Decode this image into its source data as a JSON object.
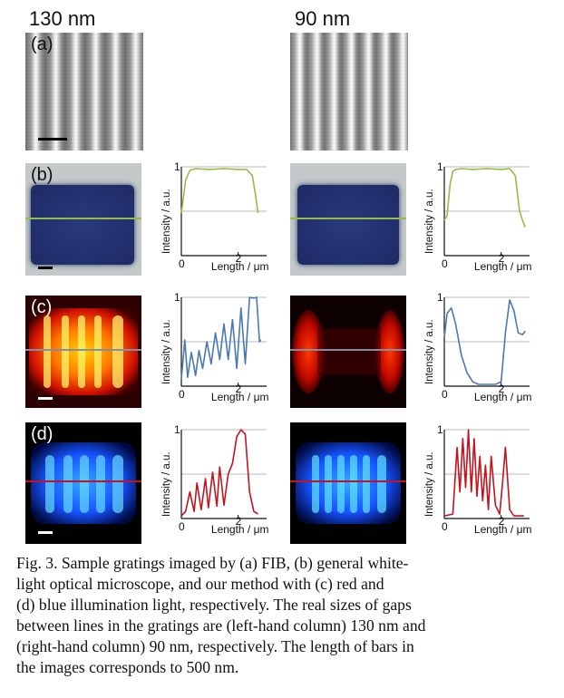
{
  "columns": {
    "left": "130 nm",
    "right": "90 nm"
  },
  "panel_labels": {
    "a": "(a)",
    "b": "(b)",
    "c": "(c)",
    "d": "(d)"
  },
  "axes": {
    "ylabel": "Intensity / a.u.",
    "xlabel": "Length / μm",
    "y_top": "1",
    "x_zero": "0",
    "x_mid": "2"
  },
  "colors": {
    "green": "#96bb46",
    "blue_line": "#4a78b4",
    "red_line": "#c0141e",
    "red_marker": "#c0141e",
    "gray_marker": "#7f8fa8"
  },
  "caption": {
    "lines": [
      "Fig. 3.   Sample gratings imaged by (a) FIB, (b) general white-",
      "light optical microscope, and our method with (c) red and",
      "(d) blue illumination light, respectively. The real sizes of gaps",
      "between lines in the gratings are (left-hand column) 130 nm and",
      "(right-hand column) 90 nm, respectively. The length of bars in",
      "the images corresponds to 500 nm."
    ]
  },
  "chart_data": [
    {
      "type": "line",
      "panel": "b-left",
      "title": "",
      "xlabel": "Length / μm",
      "ylabel": "Intensity / a.u.",
      "xlim": [
        0,
        3
      ],
      "ylim": [
        0,
        1
      ],
      "x": [
        0,
        0.05,
        0.15,
        0.3,
        0.5,
        1,
        1.5,
        2,
        2.3,
        2.5,
        2.6,
        2.7
      ],
      "series": [
        {
          "name": "green",
          "values": [
            0.48,
            0.6,
            0.85,
            0.96,
            0.98,
            0.97,
            0.98,
            0.97,
            0.97,
            0.9,
            0.7,
            0.48
          ]
        }
      ]
    },
    {
      "type": "line",
      "panel": "c-left",
      "title": "",
      "xlabel": "Length / μm",
      "ylabel": "Intensity / a.u.",
      "xlim": [
        0,
        3
      ],
      "ylim": [
        0,
        1
      ],
      "x": [
        0,
        0.12,
        0.22,
        0.35,
        0.5,
        0.62,
        0.75,
        0.9,
        1.05,
        1.2,
        1.35,
        1.5,
        1.65,
        1.8,
        1.95,
        2.1,
        2.25,
        2.4,
        2.55,
        2.65,
        2.75,
        2.8
      ],
      "series": [
        {
          "name": "blue",
          "values": [
            0.08,
            0.52,
            0.1,
            0.38,
            0.12,
            0.4,
            0.2,
            0.5,
            0.25,
            0.6,
            0.3,
            0.7,
            0.3,
            0.75,
            0.2,
            0.88,
            0.25,
            1.0,
            0.99,
            1.0,
            0.5,
            0.52
          ]
        }
      ]
    },
    {
      "type": "line",
      "panel": "d-left",
      "title": "",
      "xlabel": "Length / μm",
      "ylabel": "Intensity / a.u.",
      "xlim": [
        0,
        3
      ],
      "ylim": [
        0,
        1
      ],
      "x": [
        0,
        0.15,
        0.3,
        0.45,
        0.55,
        0.7,
        0.85,
        0.95,
        1.1,
        1.25,
        1.35,
        1.5,
        1.65,
        1.8,
        1.95,
        2.1,
        2.25,
        2.4,
        2.55,
        2.7
      ],
      "series": [
        {
          "name": "red",
          "values": [
            0.03,
            0.08,
            0.3,
            0.08,
            0.4,
            0.1,
            0.45,
            0.12,
            0.52,
            0.14,
            0.58,
            0.15,
            0.5,
            0.62,
            0.92,
            1.0,
            0.95,
            0.3,
            0.08,
            0.05
          ]
        }
      ]
    },
    {
      "type": "line",
      "panel": "b-right",
      "title": "",
      "xlabel": "Length / μm",
      "ylabel": "Intensity / a.u.",
      "xlim": [
        0,
        3
      ],
      "ylim": [
        0,
        1
      ],
      "x": [
        0,
        0.1,
        0.2,
        0.3,
        0.4,
        0.6,
        1,
        1.5,
        2,
        2.3,
        2.5,
        2.65,
        2.75,
        2.85
      ],
      "series": [
        {
          "name": "green",
          "values": [
            0.4,
            0.45,
            0.8,
            0.95,
            0.97,
            0.98,
            0.97,
            0.98,
            0.97,
            0.98,
            0.9,
            0.5,
            0.4,
            0.32
          ]
        }
      ]
    },
    {
      "type": "line",
      "panel": "c-right",
      "title": "",
      "xlabel": "Length / μm",
      "ylabel": "Intensity / a.u.",
      "xlim": [
        0,
        3
      ],
      "ylim": [
        0,
        1
      ],
      "x": [
        0,
        0.1,
        0.25,
        0.4,
        0.6,
        0.8,
        1.0,
        1.2,
        1.5,
        1.8,
        2.0,
        2.15,
        2.3,
        2.45,
        2.6,
        2.75,
        2.85
      ],
      "series": [
        {
          "name": "blue",
          "values": [
            0.55,
            0.82,
            0.88,
            0.7,
            0.35,
            0.15,
            0.05,
            0.02,
            0.02,
            0.02,
            0.05,
            0.6,
            0.97,
            0.85,
            0.6,
            0.58,
            0.62
          ]
        }
      ]
    },
    {
      "type": "line",
      "panel": "d-right",
      "title": "",
      "xlabel": "Length / μm",
      "ylabel": "Intensity / a.u.",
      "xlim": [
        0,
        3
      ],
      "ylim": [
        0,
        1
      ],
      "x": [
        0,
        0.3,
        0.45,
        0.55,
        0.65,
        0.75,
        0.85,
        0.95,
        1.05,
        1.15,
        1.25,
        1.35,
        1.45,
        1.55,
        1.65,
        1.8,
        1.95,
        2.05,
        2.15,
        2.3,
        2.45,
        2.6,
        2.8
      ],
      "series": [
        {
          "name": "red",
          "values": [
            0.03,
            0.05,
            0.8,
            0.3,
            0.9,
            0.35,
            1.0,
            0.3,
            0.9,
            0.25,
            0.7,
            0.2,
            0.6,
            0.1,
            0.7,
            0.15,
            0.05,
            0.4,
            0.8,
            0.1,
            0.03,
            0.03,
            0.03
          ]
        }
      ]
    }
  ]
}
